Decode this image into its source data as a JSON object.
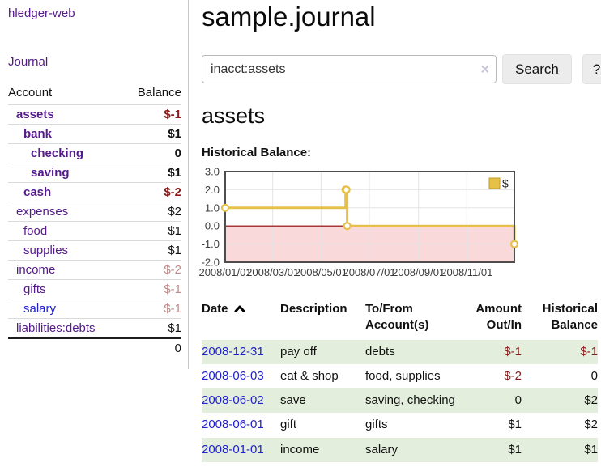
{
  "sidebar": {
    "app_title": "hledger-web",
    "nav": {
      "journal_label": "Journal"
    },
    "accounts_table": {
      "headers": {
        "account": "Account",
        "balance": "Balance"
      },
      "rows": [
        {
          "label": "assets",
          "depth": 0,
          "bold": true,
          "link_style": "purple",
          "balance": "$-1",
          "balance_style": "neg-strong"
        },
        {
          "label": "bank",
          "depth": 1,
          "bold": true,
          "link_style": "purple",
          "balance": "$1",
          "balance_style": "plain"
        },
        {
          "label": "checking",
          "depth": 2,
          "bold": true,
          "link_style": "purple",
          "balance": "0",
          "balance_style": "plain"
        },
        {
          "label": "saving",
          "depth": 2,
          "bold": true,
          "link_style": "purple",
          "balance": "$1",
          "balance_style": "plain"
        },
        {
          "label": "cash",
          "depth": 1,
          "bold": true,
          "link_style": "purple",
          "balance": "$-2",
          "balance_style": "neg-strong"
        },
        {
          "label": "expenses",
          "depth": 0,
          "bold": false,
          "link_style": "purple",
          "balance": "$2",
          "balance_style": "plain"
        },
        {
          "label": "food",
          "depth": 1,
          "bold": false,
          "link_style": "purple",
          "balance": "$1",
          "balance_style": "plain"
        },
        {
          "label": "supplies",
          "depth": 1,
          "bold": false,
          "link_style": "purple",
          "balance": "$1",
          "balance_style": "plain"
        },
        {
          "label": "income",
          "depth": 0,
          "bold": false,
          "link_style": "purple",
          "balance": "$-2",
          "balance_style": "neg-muted"
        },
        {
          "label": "gifts",
          "depth": 1,
          "bold": false,
          "link_style": "purple",
          "balance": "$-1",
          "balance_style": "neg-muted"
        },
        {
          "label": "salary",
          "depth": 1,
          "bold": false,
          "link_style": "blue",
          "balance": "$-1",
          "balance_style": "neg-muted"
        },
        {
          "label": "liabilities:debts",
          "depth": 0,
          "bold": false,
          "link_style": "purple",
          "balance": "$1",
          "balance_style": "plain"
        }
      ],
      "total": "0"
    }
  },
  "main": {
    "title": "sample.journal",
    "search": {
      "value": "inacct:assets",
      "clear_icon": "×",
      "button_label": "Search",
      "help_label": "?"
    },
    "account_heading": "assets",
    "chart_heading": "Historical Balance:",
    "register": {
      "headers": {
        "date": "Date",
        "description": "Description",
        "accounts": "To/From\nAccount(s)",
        "amount": "Amount\nOut/In",
        "balance": "Historical\nBalance"
      },
      "rows": [
        {
          "date": "2008-12-31",
          "description": "pay off",
          "accounts": "debts",
          "amount": "$-1",
          "amount_neg": true,
          "balance": "$-1",
          "balance_neg": true
        },
        {
          "date": "2008-06-03",
          "description": "eat & shop",
          "accounts": "food, supplies",
          "amount": "$-2",
          "amount_neg": true,
          "balance": "0",
          "balance_neg": false
        },
        {
          "date": "2008-06-02",
          "description": "save",
          "accounts": "saving, checking",
          "amount": "0",
          "amount_neg": false,
          "balance": "$2",
          "balance_neg": false
        },
        {
          "date": "2008-06-01",
          "description": "gift",
          "accounts": "gifts",
          "amount": "$1",
          "amount_neg": false,
          "balance": "$2",
          "balance_neg": false
        },
        {
          "date": "2008-01-01",
          "description": "income",
          "accounts": "salary",
          "amount": "$1",
          "amount_neg": false,
          "balance": "$1",
          "balance_neg": false
        }
      ]
    }
  },
  "chart_data": {
    "type": "line",
    "step": true,
    "title": "Historical Balance",
    "series": [
      {
        "name": "$",
        "x": [
          "2008-01-01",
          "2008-06-01",
          "2008-06-02",
          "2008-06-03",
          "2008-12-31"
        ],
        "values": [
          1,
          2,
          2,
          0,
          -1
        ]
      }
    ],
    "x_range": [
      "2008-01-01",
      "2008-12-31"
    ],
    "ylim": [
      -2,
      3
    ],
    "y_ticks": [
      "3.0",
      "2.0",
      "1.0",
      "0.0",
      "-1.0",
      "-2.0"
    ],
    "x_ticks": [
      "2008/01/01",
      "2008/03/01",
      "2008/05/01",
      "2008/07/01",
      "2008/09/01",
      "2008/11/01"
    ],
    "legend": {
      "label": "$",
      "position": "top-right"
    },
    "grid": true,
    "colors": {
      "line": "#e7c04a",
      "marker_fill": "#ffffff",
      "negative_fill": "#f9d9d9",
      "zero_line": "#8b0000",
      "grid": "#e4e4e4",
      "border": "#4d4d4d"
    }
  }
}
